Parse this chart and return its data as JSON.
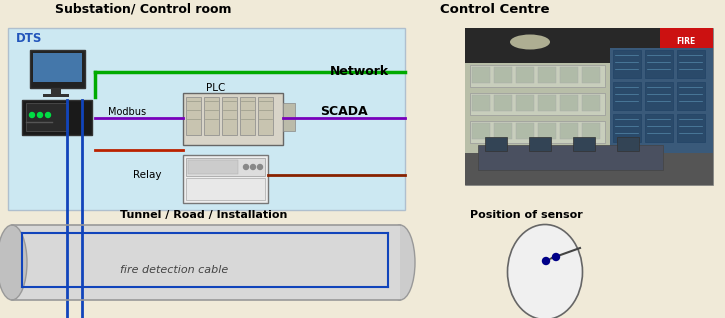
{
  "bg_color": "#f0ead8",
  "substation_label": "Substation/ Control room",
  "control_centre_label": "Control Centre",
  "dts_label": "DTS",
  "network_label": "Network",
  "scada_label": "SCADA",
  "modbus_label": "Modbus",
  "plc_label": "PLC",
  "relay_label": "Relay",
  "tunnel_label": "Tunnel / Road / Installation",
  "cable_label": "fire detection cable",
  "sensor_label": "Position of sensor",
  "box_bg": "#c8e8f5",
  "green_color": "#00aa00",
  "purple_color": "#7700bb",
  "red_color": "#bb2200",
  "blue_color": "#1144bb",
  "darkred_color": "#882200",
  "tunnel_fill": "#d8d8d8",
  "tunnel_edge": "#999999"
}
